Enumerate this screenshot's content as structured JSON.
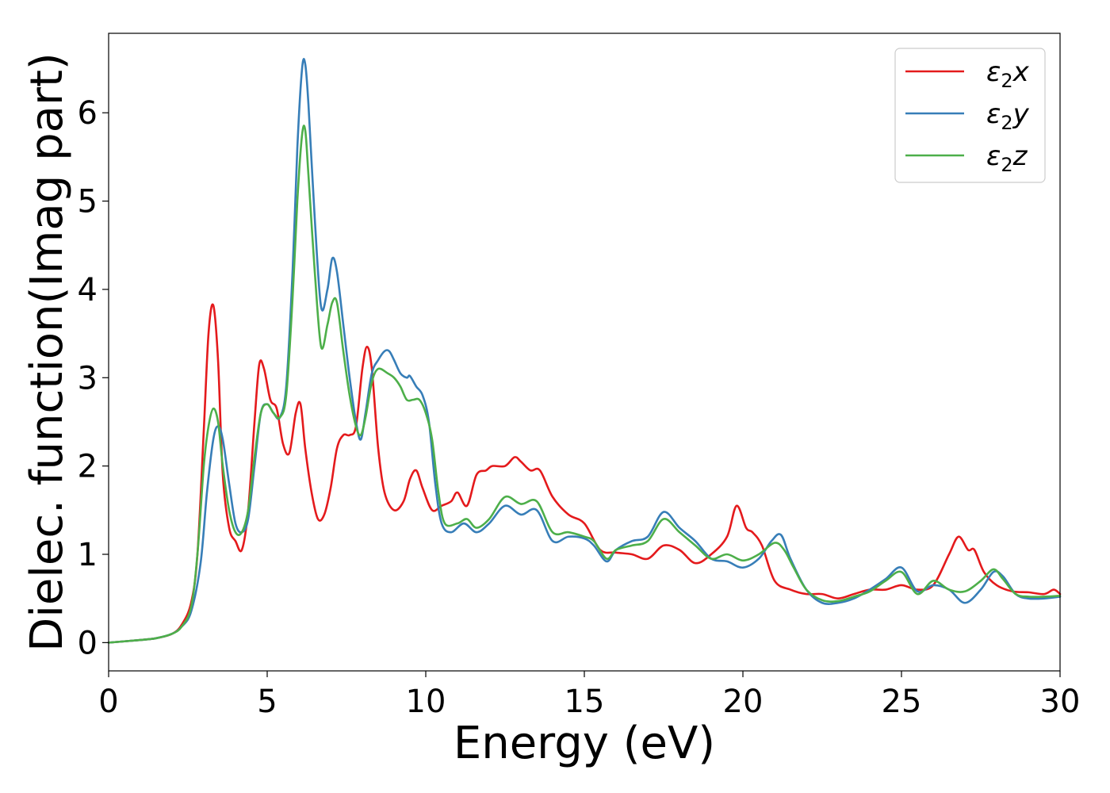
{
  "chart_data": {
    "type": "line",
    "title": "",
    "xlabel": "Energy (eV)",
    "ylabel": "Dielec. function(Imag part)",
    "xlim": [
      0,
      30
    ],
    "ylim": [
      -0.32,
      6.9
    ],
    "xticks": [
      0,
      5,
      10,
      15,
      20,
      25,
      30
    ],
    "yticks": [
      0,
      1,
      2,
      3,
      4,
      5,
      6
    ],
    "grid": false,
    "legend_position": "top-right",
    "series": [
      {
        "name": "ε₂x",
        "legend_label": {
          "base": "ε",
          "sub": "2",
          "axis": "x"
        },
        "color": "#e41a1c",
        "x": [
          0,
          1,
          1.5,
          2,
          2.3,
          2.6,
          2.8,
          3.0,
          3.15,
          3.3,
          3.45,
          3.6,
          3.8,
          4.0,
          4.2,
          4.4,
          4.6,
          4.75,
          4.9,
          5.1,
          5.3,
          5.5,
          5.7,
          5.9,
          6.05,
          6.2,
          6.4,
          6.6,
          6.8,
          7.0,
          7.2,
          7.4,
          7.6,
          7.8,
          8.0,
          8.15,
          8.3,
          8.5,
          8.7,
          9.0,
          9.3,
          9.5,
          9.7,
          9.9,
          10.2,
          10.5,
          10.8,
          11.0,
          11.3,
          11.6,
          11.9,
          12.1,
          12.5,
          12.8,
          13.0,
          13.3,
          13.6,
          14.0,
          14.5,
          15.0,
          15.5,
          16.0,
          16.5,
          17.0,
          17.5,
          18.0,
          18.5,
          19.0,
          19.5,
          19.8,
          20.1,
          20.3,
          20.6,
          21.0,
          21.5,
          22.0,
          22.5,
          23.0,
          23.5,
          24.0,
          24.5,
          25.0,
          25.5,
          26.0,
          26.5,
          26.8,
          27.1,
          27.3,
          27.6,
          28.0,
          28.5,
          29.0,
          29.5,
          29.8,
          30.0
        ],
        "y": [
          0,
          0.03,
          0.05,
          0.1,
          0.2,
          0.45,
          1.0,
          2.4,
          3.5,
          3.82,
          3.2,
          1.9,
          1.3,
          1.15,
          1.05,
          1.5,
          2.5,
          3.15,
          3.1,
          2.75,
          2.65,
          2.25,
          2.15,
          2.6,
          2.7,
          2.2,
          1.7,
          1.4,
          1.45,
          1.75,
          2.2,
          2.35,
          2.35,
          2.45,
          3.1,
          3.35,
          3.1,
          2.2,
          1.7,
          1.5,
          1.6,
          1.85,
          1.95,
          1.75,
          1.5,
          1.55,
          1.6,
          1.7,
          1.55,
          1.9,
          1.95,
          2.0,
          2.0,
          2.1,
          2.05,
          1.95,
          1.95,
          1.65,
          1.45,
          1.35,
          1.05,
          1.02,
          1.0,
          0.95,
          1.1,
          1.05,
          0.9,
          1.0,
          1.2,
          1.55,
          1.3,
          1.25,
          1.1,
          0.7,
          0.6,
          0.55,
          0.55,
          0.5,
          0.55,
          0.6,
          0.6,
          0.65,
          0.6,
          0.65,
          1.0,
          1.2,
          1.05,
          1.05,
          0.8,
          0.65,
          0.58,
          0.57,
          0.55,
          0.6,
          0.55
        ]
      },
      {
        "name": "ε₂y",
        "legend_label": {
          "base": "ε",
          "sub": "2",
          "axis": "y"
        },
        "color": "#377eb8",
        "x": [
          0,
          1,
          1.5,
          2,
          2.3,
          2.6,
          2.9,
          3.1,
          3.3,
          3.45,
          3.6,
          3.8,
          4.0,
          4.2,
          4.4,
          4.6,
          4.8,
          5.0,
          5.2,
          5.4,
          5.6,
          5.8,
          5.95,
          6.1,
          6.2,
          6.3,
          6.5,
          6.7,
          6.9,
          7.05,
          7.2,
          7.4,
          7.6,
          7.8,
          7.95,
          8.1,
          8.3,
          8.5,
          8.7,
          8.85,
          9.0,
          9.2,
          9.4,
          9.5,
          9.7,
          9.9,
          10.1,
          10.3,
          10.5,
          10.8,
          11.2,
          11.6,
          12.0,
          12.5,
          13.0,
          13.5,
          14.0,
          14.5,
          15.0,
          15.3,
          15.7,
          16.0,
          16.5,
          17.0,
          17.5,
          18.0,
          18.5,
          19.0,
          19.5,
          20.0,
          20.5,
          20.9,
          21.2,
          21.5,
          22.0,
          22.5,
          23.0,
          23.5,
          24.0,
          24.5,
          25.0,
          25.5,
          26.0,
          26.5,
          27.0,
          27.5,
          27.9,
          28.2,
          28.6,
          29.0,
          29.5,
          30.0
        ],
        "y": [
          0,
          0.03,
          0.05,
          0.1,
          0.18,
          0.35,
          0.9,
          1.7,
          2.3,
          2.45,
          2.3,
          1.8,
          1.35,
          1.25,
          1.4,
          2.0,
          2.6,
          2.7,
          2.6,
          2.55,
          2.9,
          4.2,
          5.6,
          6.5,
          6.55,
          6.1,
          4.8,
          3.8,
          4.0,
          4.35,
          4.2,
          3.6,
          3.0,
          2.5,
          2.3,
          2.6,
          3.05,
          3.2,
          3.3,
          3.3,
          3.2,
          3.05,
          3.0,
          3.02,
          2.9,
          2.8,
          2.5,
          1.8,
          1.35,
          1.25,
          1.35,
          1.25,
          1.35,
          1.55,
          1.45,
          1.5,
          1.15,
          1.2,
          1.18,
          1.1,
          0.92,
          1.05,
          1.15,
          1.2,
          1.48,
          1.3,
          1.15,
          0.95,
          0.92,
          0.85,
          0.95,
          1.15,
          1.22,
          0.95,
          0.6,
          0.45,
          0.45,
          0.5,
          0.6,
          0.72,
          0.85,
          0.58,
          0.65,
          0.6,
          0.45,
          0.6,
          0.8,
          0.75,
          0.55,
          0.5,
          0.5,
          0.52
        ]
      },
      {
        "name": "ε₂z",
        "legend_label": {
          "base": "ε",
          "sub": "2",
          "axis": "z"
        },
        "color": "#4daf4a",
        "x": [
          0,
          1,
          1.5,
          2,
          2.3,
          2.6,
          2.8,
          3.0,
          3.15,
          3.3,
          3.45,
          3.6,
          3.8,
          4.0,
          4.2,
          4.4,
          4.6,
          4.8,
          5.0,
          5.2,
          5.4,
          5.6,
          5.8,
          5.95,
          6.1,
          6.2,
          6.3,
          6.5,
          6.7,
          6.9,
          7.05,
          7.2,
          7.4,
          7.6,
          7.8,
          7.95,
          8.1,
          8.3,
          8.5,
          8.8,
          9.0,
          9.2,
          9.4,
          9.6,
          9.8,
          10.0,
          10.2,
          10.4,
          10.6,
          11.0,
          11.3,
          11.6,
          12.0,
          12.5,
          13.0,
          13.5,
          14.0,
          14.5,
          15.0,
          15.3,
          15.7,
          16.0,
          16.5,
          17.0,
          17.5,
          18.0,
          18.5,
          19.0,
          19.5,
          20.0,
          20.5,
          21.0,
          21.3,
          21.6,
          22.0,
          22.5,
          23.0,
          23.5,
          24.0,
          24.5,
          25.0,
          25.5,
          26.0,
          26.5,
          27.0,
          27.5,
          27.9,
          28.2,
          28.6,
          29.0,
          29.5,
          30.0
        ],
        "y": [
          0,
          0.03,
          0.05,
          0.1,
          0.18,
          0.4,
          1.0,
          2.0,
          2.45,
          2.65,
          2.5,
          2.0,
          1.5,
          1.25,
          1.25,
          1.5,
          2.1,
          2.6,
          2.7,
          2.6,
          2.55,
          2.8,
          3.9,
          5.0,
          5.75,
          5.8,
          5.3,
          4.2,
          3.35,
          3.6,
          3.85,
          3.85,
          3.3,
          2.8,
          2.45,
          2.35,
          2.55,
          2.95,
          3.1,
          3.05,
          3.0,
          2.9,
          2.75,
          2.75,
          2.75,
          2.6,
          2.3,
          1.7,
          1.35,
          1.35,
          1.4,
          1.3,
          1.4,
          1.65,
          1.57,
          1.6,
          1.25,
          1.25,
          1.2,
          1.15,
          0.95,
          1.05,
          1.1,
          1.15,
          1.4,
          1.25,
          1.1,
          0.95,
          1.0,
          0.93,
          1.0,
          1.13,
          1.05,
          0.85,
          0.6,
          0.48,
          0.47,
          0.52,
          0.58,
          0.7,
          0.8,
          0.55,
          0.7,
          0.6,
          0.58,
          0.7,
          0.83,
          0.72,
          0.55,
          0.52,
          0.52,
          0.53
        ]
      }
    ]
  }
}
